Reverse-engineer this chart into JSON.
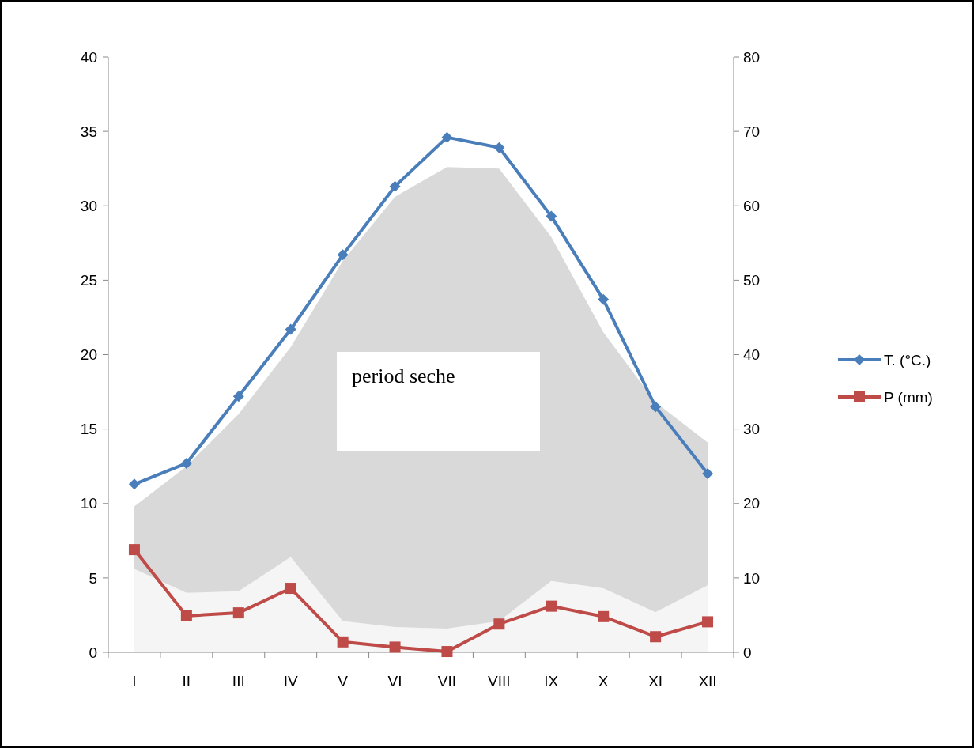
{
  "chart_data": {
    "type": "line",
    "categories": [
      "I",
      "II",
      "III",
      "IV",
      "V",
      "VI",
      "VII",
      "VIII",
      "IX",
      "X",
      "XI",
      "XII"
    ],
    "series": [
      {
        "type": "area",
        "color": "#f5f5f5",
        "values": [
          5.6,
          4.0,
          4.1,
          6.4,
          2.1,
          1.7,
          1.6,
          2.1,
          4.8,
          4.3,
          2.7,
          4.5
        ]
      },
      {
        "type": "area",
        "color": "#d9d9d9",
        "values": [
          4.2,
          8.5,
          11.9,
          14.1,
          24.2,
          28.9,
          31.0,
          30.4,
          23.1,
          17.2,
          14.1,
          9.6
        ]
      },
      {
        "name": "T. (°C.)",
        "color": "#4a7ebb",
        "marker": "diamond",
        "values": [
          11.3,
          12.7,
          17.2,
          21.7,
          26.7,
          31.3,
          34.6,
          33.9,
          29.3,
          23.7,
          16.5,
          12.0
        ]
      },
      {
        "name": "P (mm)",
        "color": "#be4b48",
        "marker": "square",
        "axis": "y2",
        "values": [
          13.8,
          4.9,
          5.3,
          8.6,
          1.4,
          0.7,
          0.1,
          3.8,
          6.2,
          4.8,
          2.1,
          4.1
        ]
      }
    ],
    "ylim": [
      0,
      40
    ],
    "yticks": [
      0,
      5,
      10,
      15,
      20,
      25,
      30,
      35,
      40
    ],
    "y2lim": [
      0,
      80
    ],
    "y2ticks": [
      0,
      10,
      20,
      30,
      40,
      50,
      60,
      70,
      80
    ],
    "legend": "right",
    "stacked": true,
    "grid": false,
    "annotations": [
      "period seche"
    ]
  }
}
